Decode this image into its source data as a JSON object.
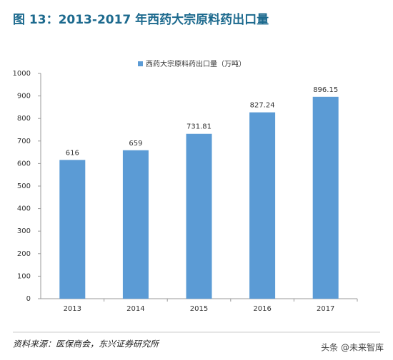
{
  "chart_data": {
    "type": "bar",
    "title": "图 13：2013-2017 年西药大宗原料药出口量",
    "categories": [
      "2013",
      "2014",
      "2015",
      "2016",
      "2017"
    ],
    "series": [
      {
        "name": "西药大宗原料药出口量（万吨）",
        "color": "#5b9bd5",
        "values": [
          616,
          659,
          731.81,
          827.24,
          896.15
        ]
      }
    ],
    "ylim": [
      0,
      1000
    ],
    "yticks": [
      0,
      100,
      200,
      300,
      400,
      500,
      600,
      700,
      800,
      900,
      1000
    ],
    "grid": false,
    "source": "资料来源：医保商会，东兴证券研究所",
    "watermark": "头条 @未来智库"
  }
}
